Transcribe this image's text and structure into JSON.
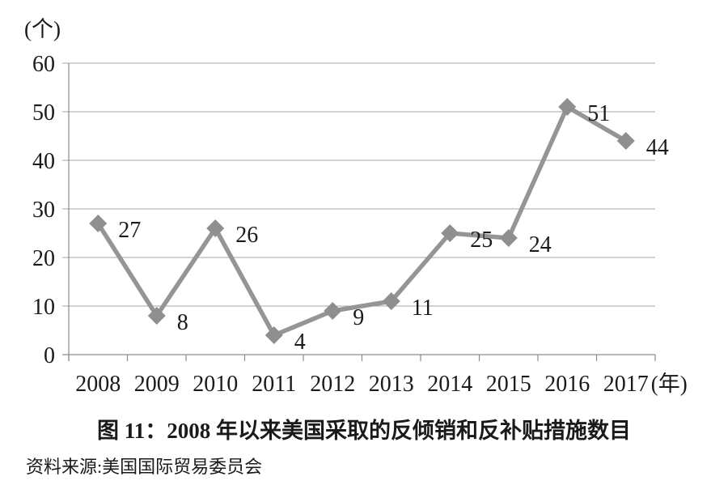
{
  "chart_data": {
    "type": "line",
    "title": "图 11：2008 年以来美国采取的反倾销和反补贴措施数目",
    "categories": [
      "2008",
      "2009",
      "2010",
      "2011",
      "2012",
      "2013",
      "2014",
      "2015",
      "2016",
      "2017"
    ],
    "values": [
      27,
      8,
      26,
      4,
      9,
      11,
      25,
      24,
      51,
      44
    ],
    "xlabel": "(年)",
    "ylabel": "(个)",
    "ylim": [
      0,
      60
    ],
    "ytick_step": 10,
    "yticks": [
      0,
      10,
      20,
      30,
      40,
      50,
      60
    ],
    "grid": true,
    "legend": "none",
    "line_color": "#959595",
    "marker": "diamond",
    "marker_color": "#8f8f8f",
    "grid_color": "#a6a6a6",
    "axis_color": "#8c8c8c",
    "text_color": "#1a1a1a"
  },
  "source": "资料来源:美国国际贸易委员会"
}
